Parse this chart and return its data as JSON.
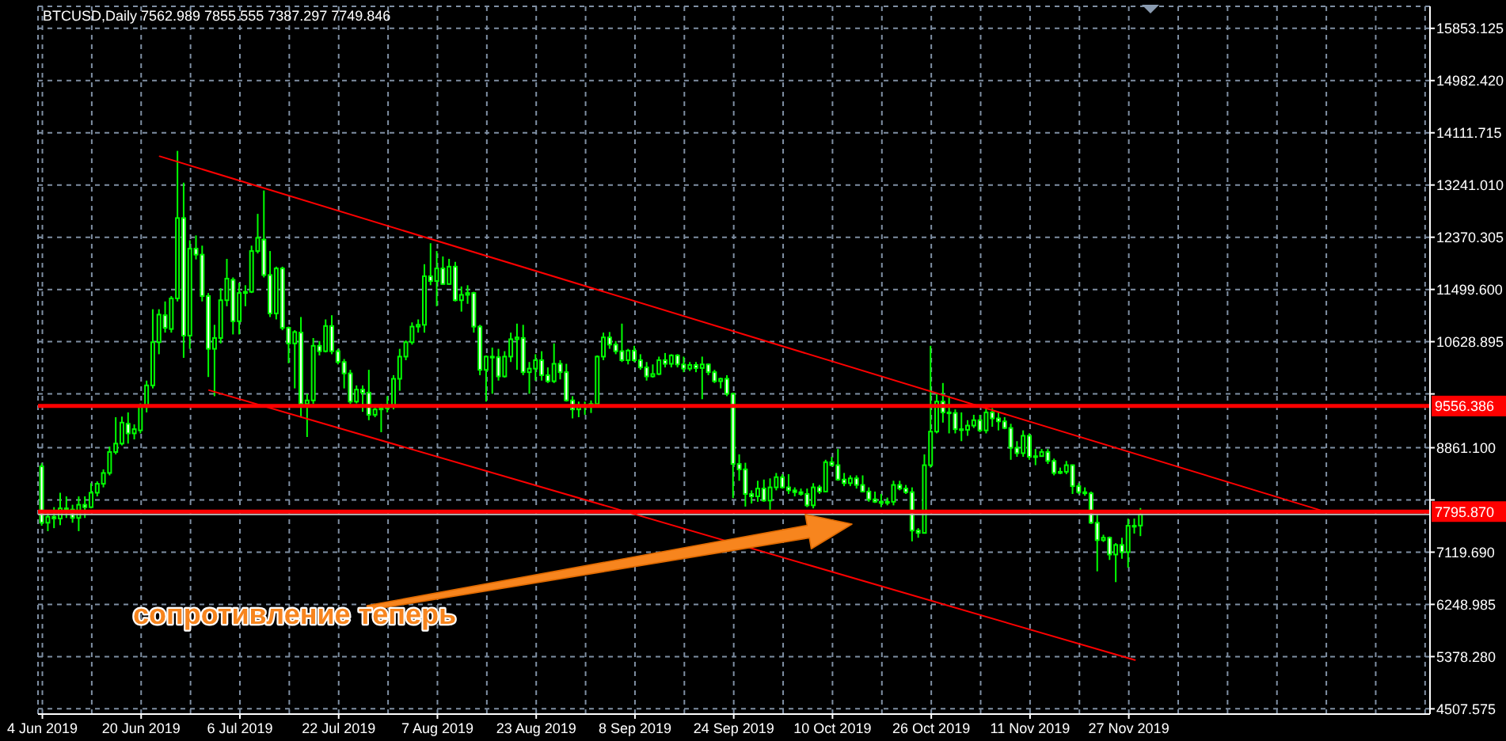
{
  "chart_data": {
    "type": "candlestick",
    "title": "BTCUSD,Daily 7562.989 7855.555 7387.297 7749.846",
    "color": "#00ff00",
    "x": [
      "2019-06-04",
      "2019-06-05",
      "2019-06-06",
      "2019-06-07",
      "2019-06-08",
      "2019-06-09",
      "2019-06-10",
      "2019-06-11",
      "2019-06-12",
      "2019-06-13",
      "2019-06-14",
      "2019-06-15",
      "2019-06-16",
      "2019-06-17",
      "2019-06-18",
      "2019-06-19",
      "2019-06-20",
      "2019-06-21",
      "2019-06-22",
      "2019-06-23",
      "2019-06-24",
      "2019-06-25",
      "2019-06-26",
      "2019-06-27",
      "2019-06-28",
      "2019-06-29",
      "2019-06-30",
      "2019-07-01",
      "2019-07-02",
      "2019-07-03",
      "2019-07-04",
      "2019-07-05",
      "2019-07-06",
      "2019-07-07",
      "2019-07-08",
      "2019-07-09",
      "2019-07-10",
      "2019-07-11",
      "2019-07-12",
      "2019-07-13",
      "2019-07-14",
      "2019-07-15",
      "2019-07-16",
      "2019-07-17",
      "2019-07-18",
      "2019-07-19",
      "2019-07-20",
      "2019-07-21",
      "2019-07-22",
      "2019-07-23",
      "2019-07-24",
      "2019-07-25",
      "2019-07-26",
      "2019-07-27",
      "2019-07-28",
      "2019-07-29",
      "2019-07-30",
      "2019-07-31",
      "2019-08-01",
      "2019-08-02",
      "2019-08-03",
      "2019-08-04",
      "2019-08-05",
      "2019-08-06",
      "2019-08-07",
      "2019-08-08",
      "2019-08-09",
      "2019-08-10",
      "2019-08-11",
      "2019-08-12",
      "2019-08-13",
      "2019-08-14",
      "2019-08-15",
      "2019-08-16",
      "2019-08-17",
      "2019-08-18",
      "2019-08-19",
      "2019-08-20",
      "2019-08-21",
      "2019-08-22",
      "2019-08-23",
      "2019-08-24",
      "2019-08-25",
      "2019-08-26",
      "2019-08-27",
      "2019-08-28",
      "2019-08-29",
      "2019-08-30",
      "2019-08-31",
      "2019-09-01",
      "2019-09-02",
      "2019-09-03",
      "2019-09-04",
      "2019-09-05",
      "2019-09-06",
      "2019-09-07",
      "2019-09-08",
      "2019-09-09",
      "2019-09-10",
      "2019-09-11",
      "2019-09-12",
      "2019-09-13",
      "2019-09-14",
      "2019-09-15",
      "2019-09-16",
      "2019-09-17",
      "2019-09-18",
      "2019-09-19",
      "2019-09-20",
      "2019-09-21",
      "2019-09-22",
      "2019-09-23",
      "2019-09-24",
      "2019-09-25",
      "2019-09-26",
      "2019-09-27",
      "2019-09-28",
      "2019-09-29",
      "2019-09-30",
      "2019-10-01",
      "2019-10-02",
      "2019-10-03",
      "2019-10-04",
      "2019-10-05",
      "2019-10-06",
      "2019-10-07",
      "2019-10-08",
      "2019-10-09",
      "2019-10-10",
      "2019-10-11",
      "2019-10-12",
      "2019-10-13",
      "2019-10-14",
      "2019-10-15",
      "2019-10-16",
      "2019-10-17",
      "2019-10-18",
      "2019-10-19",
      "2019-10-20",
      "2019-10-21",
      "2019-10-22",
      "2019-10-23",
      "2019-10-24",
      "2019-10-25",
      "2019-10-26",
      "2019-10-27",
      "2019-10-28",
      "2019-10-29",
      "2019-10-30",
      "2019-10-31",
      "2019-11-01",
      "2019-11-02",
      "2019-11-03",
      "2019-11-04",
      "2019-11-05",
      "2019-11-06",
      "2019-11-07",
      "2019-11-08",
      "2019-11-09",
      "2019-11-10",
      "2019-11-11",
      "2019-11-12",
      "2019-11-13",
      "2019-11-14",
      "2019-11-15",
      "2019-11-16",
      "2019-11-17",
      "2019-11-18",
      "2019-11-19",
      "2019-11-20",
      "2019-11-21",
      "2019-11-22",
      "2019-11-23",
      "2019-11-24",
      "2019-11-25",
      "2019-11-26",
      "2019-11-27",
      "2019-11-28",
      "2019-11-29"
    ],
    "ohlc": [
      [
        8550,
        8600,
        7560,
        7610
      ],
      [
        7610,
        7780,
        7470,
        7710
      ],
      [
        7710,
        7870,
        7520,
        7680
      ],
      [
        7680,
        8110,
        7570,
        7850
      ],
      [
        7850,
        8050,
        7690,
        7830
      ],
      [
        7830,
        7910,
        7610,
        7690
      ],
      [
        7690,
        8050,
        7470,
        7910
      ],
      [
        7910,
        8050,
        7690,
        7870
      ],
      [
        7870,
        8270,
        7850,
        8110
      ],
      [
        8110,
        8300,
        8050,
        8260
      ],
      [
        8260,
        8500,
        8200,
        8440
      ],
      [
        8440,
        8880,
        8400,
        8790
      ],
      [
        8790,
        9370,
        8750,
        8930
      ],
      [
        8930,
        9380,
        8900,
        9280
      ],
      [
        9260,
        9450,
        8930,
        9100
      ],
      [
        9100,
        9250,
        9000,
        9170
      ],
      [
        9150,
        9600,
        9100,
        9540
      ],
      [
        9540,
        9980,
        9450,
        9900
      ],
      [
        9900,
        11170,
        9850,
        10620
      ],
      [
        10620,
        11170,
        10420,
        11080
      ],
      [
        11070,
        11300,
        10780,
        10860
      ],
      [
        10840,
        11390,
        10780,
        11350
      ],
      [
        11350,
        13810,
        11300,
        12690
      ],
      [
        12690,
        13280,
        10360,
        10730
      ],
      [
        10730,
        12320,
        10510,
        12180
      ],
      [
        12180,
        12400,
        12000,
        12080
      ],
      [
        12080,
        12230,
        11300,
        11390
      ],
      [
        11390,
        11440,
        10040,
        10510
      ],
      [
        10510,
        10910,
        9720,
        10690
      ],
      [
        10690,
        11520,
        10600,
        11320
      ],
      [
        11320,
        12010,
        11220,
        11680
      ],
      [
        11660,
        11700,
        10750,
        10970
      ],
      [
        10970,
        11610,
        10750,
        11440
      ],
      [
        11440,
        11570,
        11220,
        11460
      ],
      [
        11460,
        12230,
        11440,
        12140
      ],
      [
        12140,
        12760,
        12100,
        12360
      ],
      [
        12330,
        13150,
        11700,
        11740
      ],
      [
        11740,
        12140,
        11040,
        11100
      ],
      [
        11100,
        11880,
        11000,
        11850
      ],
      [
        11850,
        11880,
        10820,
        10860
      ],
      [
        10860,
        10880,
        10270,
        10600
      ],
      [
        10600,
        10820,
        9850,
        10790
      ],
      [
        10780,
        11040,
        9370,
        9590
      ],
      [
        9590,
        9760,
        9040,
        9650
      ],
      [
        9650,
        10690,
        9590,
        10560
      ],
      [
        10560,
        10640,
        10400,
        10470
      ],
      [
        10470,
        11000,
        10450,
        10890
      ],
      [
        10890,
        11070,
        10420,
        10470
      ],
      [
        10470,
        10510,
        10250,
        10290
      ],
      [
        10290,
        10340,
        9850,
        10100
      ],
      [
        10100,
        10160,
        9590,
        9630
      ],
      [
        9630,
        9900,
        9600,
        9830
      ],
      [
        9830,
        9900,
        9460,
        9780
      ],
      [
        9780,
        10160,
        9320,
        9410
      ],
      [
        9410,
        9540,
        9370,
        9500
      ],
      [
        9500,
        9590,
        9120,
        9520
      ],
      [
        9520,
        9720,
        9450,
        9540
      ],
      [
        9540,
        10070,
        9500,
        10010
      ],
      [
        10010,
        10510,
        9810,
        10380
      ],
      [
        10380,
        10650,
        10320,
        10620
      ],
      [
        10620,
        10950,
        10580,
        10880
      ],
      [
        10880,
        11000,
        10780,
        10910
      ],
      [
        10910,
        11920,
        10780,
        11720
      ],
      [
        11720,
        12270,
        11570,
        11640
      ],
      [
        11640,
        12140,
        11220,
        11850
      ],
      [
        11850,
        12050,
        11580,
        11590
      ],
      [
        11590,
        12010,
        11580,
        11880
      ],
      [
        11880,
        11960,
        11300,
        11320
      ],
      [
        11320,
        11550,
        11130,
        11410
      ],
      [
        11410,
        11570,
        11260,
        11440
      ],
      [
        11440,
        11460,
        10780,
        10880
      ],
      [
        10880,
        10910,
        10070,
        10160
      ],
      [
        10160,
        10400,
        9630,
        10380
      ],
      [
        10380,
        10530,
        9760,
        10370
      ],
      [
        10370,
        10510,
        9980,
        10050
      ],
      [
        10050,
        10470,
        10030,
        10380
      ],
      [
        10380,
        10780,
        10290,
        10670
      ],
      [
        10670,
        10930,
        10160,
        10700
      ],
      [
        10690,
        10910,
        10070,
        10120
      ],
      [
        10120,
        10290,
        9760,
        10180
      ],
      [
        10180,
        10420,
        9980,
        10320
      ],
      [
        10320,
        10470,
        9980,
        10070
      ],
      [
        10070,
        10200,
        9940,
        9970
      ],
      [
        9970,
        10600,
        9940,
        10260
      ],
      [
        10260,
        10320,
        10000,
        10120
      ],
      [
        10120,
        10260,
        9630,
        9650
      ],
      [
        9650,
        9720,
        9350,
        9500
      ],
      [
        9500,
        9630,
        9370,
        9570
      ],
      [
        9570,
        9630,
        9410,
        9540
      ],
      [
        9540,
        9650,
        9440,
        9590
      ],
      [
        9590,
        10400,
        9540,
        10380
      ],
      [
        10380,
        10780,
        10320,
        10700
      ],
      [
        10700,
        10790,
        10510,
        10580
      ],
      [
        10580,
        10640,
        10420,
        10470
      ],
      [
        10470,
        10930,
        10290,
        10320
      ],
      [
        10320,
        10510,
        10250,
        10480
      ],
      [
        10480,
        10560,
        10290,
        10320
      ],
      [
        10320,
        10420,
        10160,
        10200
      ],
      [
        10200,
        10290,
        9980,
        10050
      ],
      [
        10050,
        10250,
        10030,
        10090
      ],
      [
        10090,
        10380,
        10070,
        10320
      ],
      [
        10320,
        10440,
        10200,
        10260
      ],
      [
        10260,
        10420,
        10200,
        10400
      ],
      [
        10400,
        10420,
        10200,
        10250
      ],
      [
        10250,
        10380,
        10120,
        10180
      ],
      [
        10180,
        10290,
        10140,
        10240
      ],
      [
        10240,
        10290,
        10120,
        10190
      ],
      [
        10190,
        10380,
        9670,
        10250
      ],
      [
        10250,
        10260,
        10070,
        10120
      ],
      [
        10120,
        10160,
        9940,
        9970
      ],
      [
        9970,
        10030,
        9850,
        10010
      ],
      [
        10010,
        10070,
        9720,
        9760
      ],
      [
        9760,
        9780,
        8020,
        8590
      ],
      [
        8590,
        8750,
        8310,
        8500
      ],
      [
        8500,
        8610,
        7880,
        8090
      ],
      [
        8090,
        8150,
        7930,
        8050
      ],
      [
        8050,
        8310,
        7960,
        8180
      ],
      [
        8180,
        8330,
        7960,
        7980
      ],
      [
        7980,
        8350,
        7780,
        8200
      ],
      [
        8200,
        8440,
        8150,
        8370
      ],
      [
        8370,
        8420,
        8180,
        8200
      ],
      [
        8200,
        8420,
        8090,
        8150
      ],
      [
        8150,
        8200,
        8050,
        8120
      ],
      [
        8120,
        8180,
        8060,
        8090
      ],
      [
        8090,
        8180,
        7870,
        7900
      ],
      [
        7900,
        8270,
        7850,
        8200
      ],
      [
        8200,
        8240,
        8090,
        8130
      ],
      [
        8130,
        8660,
        8120,
        8620
      ],
      [
        8620,
        8710,
        8550,
        8570
      ],
      [
        8570,
        8840,
        8310,
        8330
      ],
      [
        8330,
        8440,
        8220,
        8270
      ],
      [
        8270,
        8400,
        8220,
        8350
      ],
      [
        8350,
        8400,
        8180,
        8240
      ],
      [
        8240,
        8400,
        8120,
        8130
      ],
      [
        8130,
        8200,
        7960,
        8000
      ],
      [
        8000,
        8130,
        7940,
        7960
      ],
      [
        7960,
        8090,
        7870,
        7940
      ],
      [
        7940,
        8030,
        7900,
        7960
      ],
      [
        7960,
        8310,
        7900,
        8240
      ],
      [
        8240,
        8310,
        8150,
        8180
      ],
      [
        8180,
        8240,
        8090,
        8120
      ],
      [
        8120,
        8200,
        7300,
        7480
      ],
      [
        7480,
        7520,
        7360,
        7440
      ],
      [
        7440,
        8750,
        7430,
        8570
      ],
      [
        8570,
        10560,
        8530,
        9130
      ],
      [
        9130,
        9760,
        9100,
        9630
      ],
      [
        9630,
        9940,
        9280,
        9450
      ],
      [
        9450,
        9720,
        9100,
        9440
      ],
      [
        9440,
        9500,
        9100,
        9170
      ],
      [
        9170,
        9450,
        8970,
        9160
      ],
      [
        9160,
        9320,
        9060,
        9230
      ],
      [
        9230,
        9410,
        9190,
        9320
      ],
      [
        9320,
        9410,
        9120,
        9150
      ],
      [
        9150,
        9540,
        9100,
        9450
      ],
      [
        9450,
        9520,
        9210,
        9350
      ],
      [
        9350,
        9450,
        9150,
        9300
      ],
      [
        9300,
        9370,
        9170,
        9190
      ],
      [
        9190,
        9260,
        8660,
        8860
      ],
      [
        8860,
        8970,
        8710,
        8770
      ],
      [
        8770,
        9150,
        8710,
        9060
      ],
      [
        9060,
        9100,
        8660,
        8710
      ],
      [
        8710,
        8840,
        8570,
        8720
      ],
      [
        8720,
        8840,
        8710,
        8790
      ],
      [
        8790,
        8840,
        8590,
        8640
      ],
      [
        8640,
        8680,
        8400,
        8440
      ],
      [
        8440,
        8530,
        8420,
        8460
      ],
      [
        8460,
        8640,
        8420,
        8570
      ],
      [
        8570,
        8580,
        8090,
        8220
      ],
      [
        8220,
        8270,
        8090,
        8120
      ],
      [
        8120,
        8200,
        8060,
        8100
      ],
      [
        8100,
        8130,
        7590,
        7610
      ],
      [
        7610,
        7740,
        6800,
        7320
      ],
      [
        7320,
        7410,
        7290,
        7360
      ],
      [
        7360,
        7380,
        6990,
        7080
      ],
      [
        7080,
        7270,
        6620,
        7240
      ],
      [
        7240,
        7360,
        7010,
        7120
      ],
      [
        7120,
        7680,
        6860,
        7560
      ],
      [
        7560,
        7680,
        7430,
        7560
      ],
      [
        7562.989,
        7855.555,
        7387.297,
        7749.846
      ]
    ],
    "series": [
      {
        "type": "line",
        "color": "#ff0000",
        "x": [
          "2019-06-23",
          "2019-12-28"
        ],
        "values": [
          13720,
          7820
        ]
      },
      {
        "type": "line",
        "color": "#ff0000",
        "x": [
          "2019-07-01",
          "2019-11-28"
        ],
        "values": [
          9820,
          5320
        ]
      }
    ],
    "xlim": [
      "2019-06-03T07:00",
      "2020-01-14T19:00"
    ],
    "xticks": [
      {
        "value": "2019-06-04",
        "label": "4 Jun 2019"
      },
      {
        "value": "2019-06-12",
        "label": null
      },
      {
        "value": "2019-06-20",
        "label": "20 Jun 2019"
      },
      {
        "value": "2019-06-28",
        "label": null
      },
      {
        "value": "2019-07-06",
        "label": "6 Jul 2019"
      },
      {
        "value": "2019-07-14",
        "label": null
      },
      {
        "value": "2019-07-22",
        "label": "22 Jul 2019"
      },
      {
        "value": "2019-07-30",
        "label": null
      },
      {
        "value": "2019-08-07",
        "label": "7 Aug 2019"
      },
      {
        "value": "2019-08-15",
        "label": null
      },
      {
        "value": "2019-08-23",
        "label": "23 Aug 2019"
      },
      {
        "value": "2019-08-31",
        "label": null
      },
      {
        "value": "2019-09-08",
        "label": "8 Sep 2019"
      },
      {
        "value": "2019-09-16",
        "label": null
      },
      {
        "value": "2019-09-24",
        "label": "24 Sep 2019"
      },
      {
        "value": "2019-10-02",
        "label": null
      },
      {
        "value": "2019-10-10",
        "label": "10 Oct 2019"
      },
      {
        "value": "2019-10-18",
        "label": null
      },
      {
        "value": "2019-10-26",
        "label": "26 Oct 2019"
      },
      {
        "value": "2019-11-03",
        "label": null
      },
      {
        "value": "2019-11-11",
        "label": "11 Nov 2019"
      },
      {
        "value": "2019-11-19",
        "label": null
      },
      {
        "value": "2019-11-27",
        "label": "27 Nov 2019"
      },
      {
        "value": "2019-12-05",
        "label": null
      },
      {
        "value": "2019-12-13",
        "label": null
      },
      {
        "value": "2019-12-21",
        "label": null
      },
      {
        "value": "2019-12-29",
        "label": null
      },
      {
        "value": "2020-01-06",
        "label": null
      },
      {
        "value": "2020-01-14",
        "label": null
      }
    ],
    "ylim": [
      4420,
      16220
    ],
    "yticks": [
      4507.575,
      {
        "value": 5378.28,
        "label": "5378.280"
      },
      6248.985,
      {
        "value": 7119.69,
        "label": "7119.690"
      },
      {
        "value": 7990.395,
        "label": null
      },
      {
        "value": 8861.1,
        "label": "8861.100"
      },
      {
        "value": 9758.19,
        "label": null
      },
      10628.895,
      {
        "value": 11499.6,
        "label": "11499.600"
      },
      12370.305,
      {
        "value": 13241.01,
        "label": "13241.010"
      },
      14111.715,
      {
        "value": 14982.42,
        "label": "14982.420"
      },
      15853.125
    ],
    "grid": true,
    "ref_lines": [
      {
        "axis": "y",
        "value": 7749.846,
        "color": "#c0c0c0"
      },
      {
        "axis": "y",
        "value": 9556.386,
        "label": "9556.386",
        "color": "#ff0000"
      },
      {
        "axis": "y",
        "value": 7795.87,
        "label": "7795.870",
        "color": "#ff0000"
      }
    ],
    "annotations": [
      "сопротивление теперь"
    ]
  }
}
